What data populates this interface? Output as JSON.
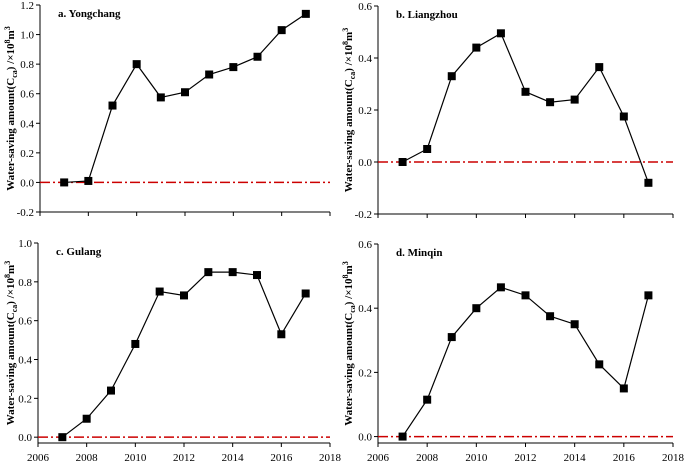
{
  "chart_data": [
    {
      "type": "line",
      "title": "a. Yongchang",
      "ylabel": "Water-saving amount(C",
      "ylabel_sub": "ca",
      "ylabel_unit": ") /×10",
      "ylabel_exp1": "8",
      "ylabel_m": "m",
      "ylabel_exp2": "3",
      "x": [
        2007,
        2008,
        2009,
        2010,
        2011,
        2012,
        2013,
        2014,
        2015,
        2016,
        2017
      ],
      "series": [
        {
          "values": [
            0.0,
            0.01,
            0.52,
            0.8,
            0.575,
            0.61,
            0.73,
            0.78,
            0.85,
            1.03,
            1.14
          ]
        }
      ],
      "xlim": [
        2006,
        2018
      ],
      "ylim": [
        -0.2,
        1.2
      ],
      "yticks": [
        -0.2,
        0.0,
        0.2,
        0.4,
        0.6,
        0.8,
        1.0,
        1.2
      ],
      "ytick_labels": [
        "-0.2",
        "0.0",
        "0.2",
        "0.4",
        "0.6",
        "0.8",
        "1.0",
        "1.2"
      ],
      "xticks": [
        2006,
        2008,
        2010,
        2012,
        2014,
        2016,
        2018
      ],
      "xtick_labels": [],
      "reference_line": {
        "y": 0,
        "color": "#cc0000",
        "style": "dash-dot"
      },
      "marker": "square",
      "grid": false
    },
    {
      "type": "line",
      "title": "b. Liangzhou",
      "ylabel": "Water-saving amount(C",
      "ylabel_sub": "ca",
      "ylabel_unit": ") /×10",
      "ylabel_exp1": "8",
      "ylabel_m": "m",
      "ylabel_exp2": "3",
      "x": [
        2007,
        2008,
        2009,
        2010,
        2011,
        2012,
        2013,
        2014,
        2015,
        2016,
        2017
      ],
      "series": [
        {
          "values": [
            0.0,
            0.05,
            0.33,
            0.44,
            0.495,
            0.27,
            0.23,
            0.24,
            0.365,
            0.175,
            -0.08
          ]
        }
      ],
      "xlim": [
        2006,
        2018
      ],
      "ylim": [
        -0.2,
        0.6
      ],
      "yticks": [
        -0.2,
        0.0,
        0.2,
        0.4,
        0.6
      ],
      "ytick_labels": [
        "-0.2",
        "0.0",
        "0.2",
        "0.4",
        "0.6"
      ],
      "xticks": [
        2006,
        2008,
        2010,
        2012,
        2014,
        2016,
        2018
      ],
      "xtick_labels": [],
      "reference_line": {
        "y": 0,
        "color": "#cc0000",
        "style": "dash-dot"
      },
      "marker": "square",
      "grid": false
    },
    {
      "type": "line",
      "title": "c. Gulang",
      "ylabel": "Water-saving amount(C",
      "ylabel_sub": "ca",
      "ylabel_unit": ") /×10",
      "ylabel_exp1": "8",
      "ylabel_m": "m",
      "ylabel_exp2": "3",
      "x": [
        2007,
        2008,
        2009,
        2010,
        2011,
        2012,
        2013,
        2014,
        2015,
        2016,
        2017
      ],
      "series": [
        {
          "values": [
            0.0,
            0.095,
            0.24,
            0.48,
            0.75,
            0.73,
            0.85,
            0.85,
            0.835,
            0.53,
            0.74
          ]
        }
      ],
      "xlim": [
        2006,
        2018
      ],
      "ylim": [
        -0.03,
        1.0
      ],
      "yticks": [
        0.0,
        0.2,
        0.4,
        0.6,
        0.8,
        1.0
      ],
      "ytick_labels": [
        "0.0",
        "0.2",
        "0.4",
        "0.6",
        "0.8",
        "1.0"
      ],
      "xticks": [
        2006,
        2008,
        2010,
        2012,
        2014,
        2016,
        2018
      ],
      "xtick_labels": [
        "2006",
        "2008",
        "2010",
        "2012",
        "2014",
        "2016",
        "2018"
      ],
      "reference_line": {
        "y": 0,
        "color": "#cc0000",
        "style": "dash-dot"
      },
      "marker": "square",
      "grid": false
    },
    {
      "type": "line",
      "title": "d. Minqin",
      "ylabel": "Water-saving amount(C",
      "ylabel_sub": "ca",
      "ylabel_unit": ") /×10",
      "ylabel_exp1": "8",
      "ylabel_m": "m",
      "ylabel_exp2": "3",
      "x": [
        2007,
        2008,
        2009,
        2010,
        2011,
        2012,
        2013,
        2014,
        2015,
        2016,
        2017
      ],
      "series": [
        {
          "values": [
            0.0,
            0.115,
            0.31,
            0.4,
            0.465,
            0.44,
            0.375,
            0.35,
            0.225,
            0.15,
            0.44
          ]
        }
      ],
      "xlim": [
        2006,
        2018
      ],
      "ylim": [
        -0.02,
        0.6
      ],
      "yticks": [
        0.0,
        0.2,
        0.4,
        0.6
      ],
      "ytick_labels": [
        "0.0",
        "0.2",
        "0.4",
        "0.6"
      ],
      "xticks": [
        2006,
        2008,
        2010,
        2012,
        2014,
        2016,
        2018
      ],
      "xtick_labels": [
        "2006",
        "2008",
        "2010",
        "2012",
        "2014",
        "2016",
        "2018"
      ],
      "reference_line": {
        "y": 0,
        "color": "#cc0000",
        "style": "dash-dot"
      },
      "marker": "square",
      "grid": false
    }
  ]
}
